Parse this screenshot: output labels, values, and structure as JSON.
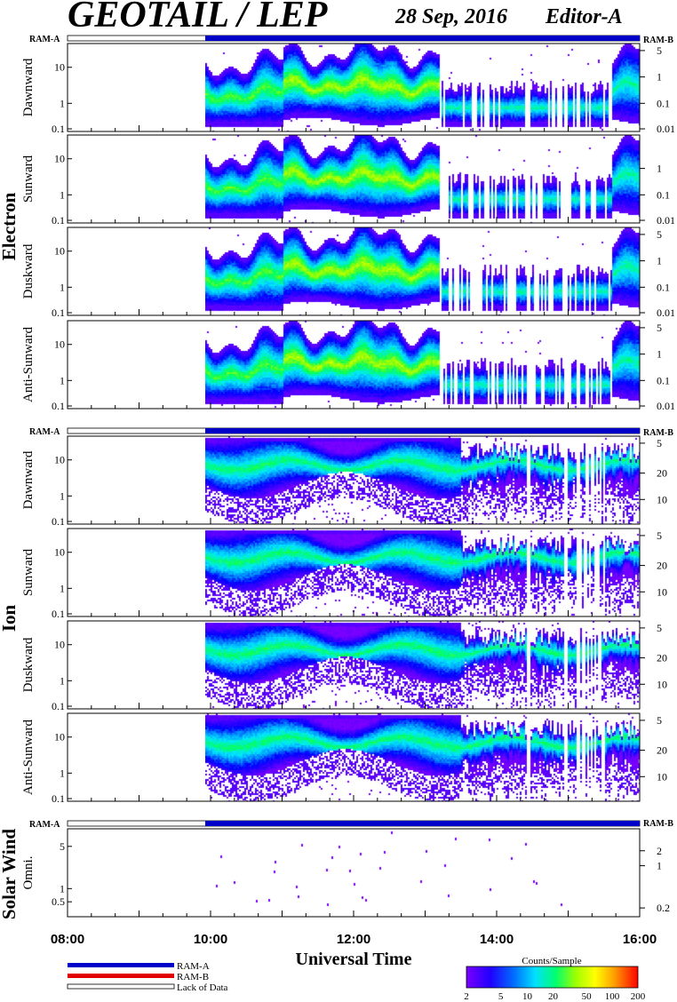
{
  "header": {
    "title": "GEOTAIL / LEP",
    "date": "28 Sep, 2016",
    "editor": "Editor-A"
  },
  "groups": {
    "electron": "Electron",
    "ion": "Ion",
    "solar_wind": "Solar Wind"
  },
  "ram": {
    "left": "RAM-A",
    "right": "RAM-B"
  },
  "xaxis": {
    "label": "Universal Time",
    "ticks": [
      "08:00",
      "10:00",
      "12:00",
      "14:00",
      "16:00"
    ]
  },
  "legend": {
    "ram_a": "RAM-A",
    "ram_b": "RAM-B",
    "lack": "Lack of Data",
    "ram_a_color": "#0000c8",
    "ram_b_color": "#e00000"
  },
  "colorbar": {
    "title": "Counts/Sample",
    "ticks": [
      "2",
      "5",
      "10",
      "20",
      "50",
      "100",
      "200"
    ]
  },
  "chart_data": {
    "type": "heatmap",
    "x_range_hours": [
      8,
      16
    ],
    "data_start_hour": 9.92,
    "gaps_hours": [
      [
        14.42,
        14.47
      ],
      [
        14.93,
        14.97
      ]
    ],
    "colormap": [
      "#7a00ff",
      "#3c00ff",
      "#0000ff",
      "#0090ff",
      "#00e8ff",
      "#00ff60",
      "#9bff00",
      "#ffff00",
      "#ffa000",
      "#ff2000",
      "#ff0000"
    ],
    "panels": [
      {
        "group": "electron",
        "label": "Dawnward",
        "left_ticks": [
          "10",
          "1",
          "0.1"
        ],
        "right_ticks": [
          "5",
          "1",
          "0.1",
          "0.01"
        ]
      },
      {
        "group": "electron",
        "label": "Sunward",
        "left_ticks": [
          "10",
          "1",
          "0.1"
        ],
        "right_ticks": [
          "1",
          "0.1",
          "0.01"
        ]
      },
      {
        "group": "electron",
        "label": "Duskward",
        "left_ticks": [
          "10",
          "1",
          "0.1"
        ],
        "right_ticks": [
          "5",
          "1",
          "0.1",
          "0.01"
        ]
      },
      {
        "group": "electron",
        "label": "Anti-Sunward",
        "left_ticks": [
          "10",
          "1",
          "0.1"
        ],
        "right_ticks": [
          "5",
          "1",
          "0.1",
          "0.01"
        ]
      },
      {
        "group": "ion",
        "label": "Dawnward",
        "left_ticks": [
          "10",
          "1",
          "0.1"
        ],
        "right_ticks": [
          "20",
          "10",
          "5"
        ]
      },
      {
        "group": "ion",
        "label": "Sunward",
        "left_ticks": [
          "10",
          "1",
          "0.1"
        ],
        "right_ticks": [
          "20",
          "10",
          "5"
        ]
      },
      {
        "group": "ion",
        "label": "Duskward",
        "left_ticks": [
          "10",
          "1",
          "0.1"
        ],
        "right_ticks": [
          "20",
          "10",
          "5"
        ]
      },
      {
        "group": "ion",
        "label": "Anti-Sunward",
        "left_ticks": [
          "10",
          "1",
          "0.1"
        ],
        "right_ticks": [
          "20",
          "10",
          "5"
        ]
      },
      {
        "group": "solar_wind",
        "label": "Omni.",
        "left_ticks": [
          "5",
          "1",
          "0.5"
        ],
        "right_ticks": [
          "2",
          "1",
          "0.2"
        ]
      }
    ]
  }
}
